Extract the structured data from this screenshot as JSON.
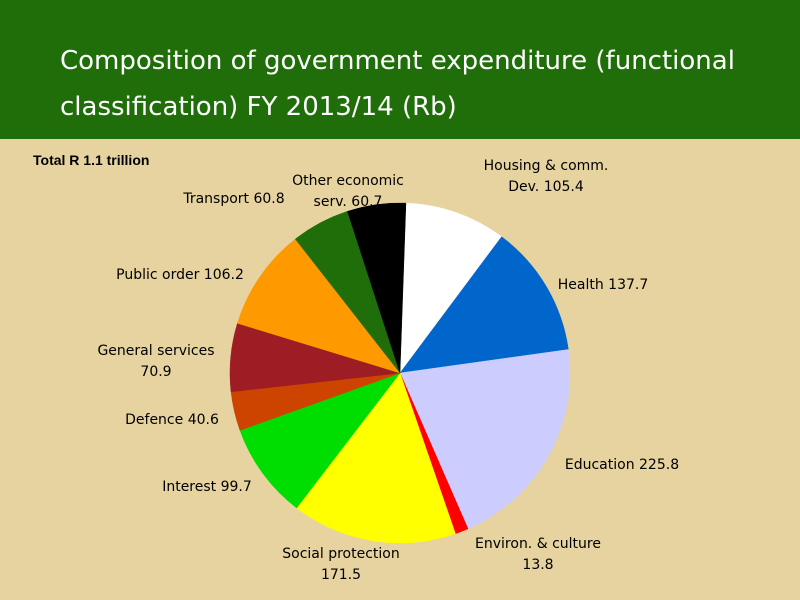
{
  "title": "Composition of government expenditure (functional classification) FY 2013/14 (Rb)",
  "subtitle": "Total R 1.1 trillion",
  "chart_data": {
    "type": "pie",
    "title": "Composition of government expenditure (functional classification) FY 2013/14 (Rb)",
    "subtitle": "Total R 1.1 trillion",
    "slices": [
      {
        "label": "Housing & comm. Dev.",
        "value": 105.4,
        "color": "#ffffff",
        "text_lines": [
          "Housing & comm.",
          "Dev. 105.4"
        ]
      },
      {
        "label": "Health",
        "value": 137.7,
        "color": "#0066cc",
        "text_lines": [
          "Health 137.7"
        ]
      },
      {
        "label": "Education",
        "value": 225.8,
        "color": "#ccccff",
        "text_lines": [
          "Education 225.8"
        ]
      },
      {
        "label": "Environ. & culture",
        "value": 13.8,
        "color": "#ff0000",
        "text_lines": [
          "Environ. & culture",
          "13.8"
        ]
      },
      {
        "label": "Social protection",
        "value": 171.5,
        "color": "#ffff00",
        "text_lines": [
          "Social protection",
          "171.5"
        ]
      },
      {
        "label": "Interest",
        "value": 99.7,
        "color": "#00dd00",
        "text_lines": [
          "Interest 99.7"
        ]
      },
      {
        "label": "Defence",
        "value": 40.6,
        "color": "#cc4400",
        "text_lines": [
          "Defence 40.6"
        ]
      },
      {
        "label": "General services",
        "value": 70.9,
        "color": "#9e1c24",
        "text_lines": [
          "General services",
          "70.9"
        ]
      },
      {
        "label": "Public order",
        "value": 106.2,
        "color": "#ff9900",
        "text_lines": [
          "Public order 106.2"
        ]
      },
      {
        "label": "Transport",
        "value": 60.8,
        "color": "#1f6e0a",
        "text_lines": [
          "Transport 60.8"
        ]
      },
      {
        "label": "Other economic serv.",
        "value": 60.7,
        "color": "#000000",
        "text_lines": [
          "Other economic",
          "serv. 60.7"
        ]
      }
    ]
  }
}
